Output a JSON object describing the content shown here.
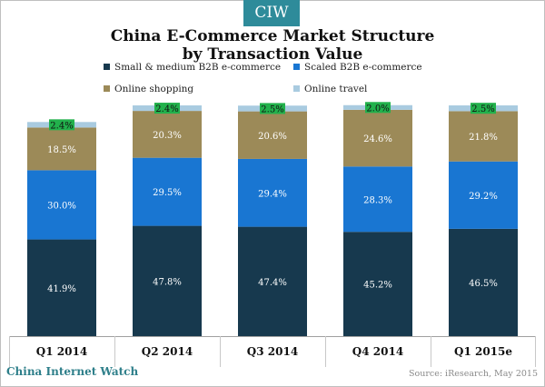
{
  "badge": "CIW",
  "chart_data": {
    "type": "bar",
    "stacked": true,
    "title_line1": "China E-Commerce Market Structure",
    "title_line2": "by Transaction Value",
    "categories": [
      "Q1 2014",
      "Q2 2014",
      "Q3 2014",
      "Q4 2014",
      "Q1 2015e"
    ],
    "series": [
      {
        "name": "Small & medium B2B e-commerce",
        "color": "#17394e",
        "label_color": "#ffffff",
        "values": [
          41.9,
          47.8,
          47.4,
          45.2,
          46.5
        ]
      },
      {
        "name": "Scaled B2B e-commerce",
        "color": "#1976d2",
        "label_color": "#ffffff",
        "values": [
          30.0,
          29.5,
          29.4,
          28.3,
          29.2
        ]
      },
      {
        "name": "Online shopping",
        "color": "#9c8a58",
        "label_color": "#ffffff",
        "values": [
          18.5,
          20.3,
          20.6,
          24.6,
          21.8
        ]
      },
      {
        "name": "Online travel",
        "color": "#a9cbe0",
        "label_color": "#111111",
        "values": [
          2.4,
          2.4,
          2.5,
          2.0,
          2.5
        ]
      }
    ],
    "value_format": "{v}%",
    "ylim": [
      0,
      100
    ],
    "xlabel": "",
    "ylabel": "",
    "grid": false,
    "legend_position": "top"
  },
  "footer": {
    "brand": "China Internet Watch",
    "source": "Source: iResearch, May 2015"
  }
}
